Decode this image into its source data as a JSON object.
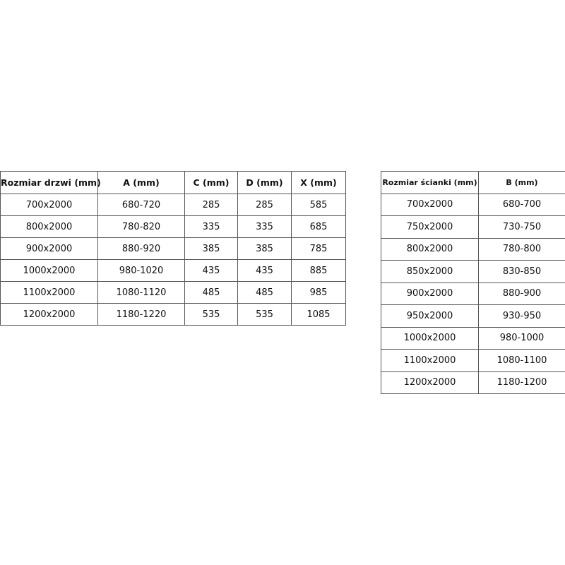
{
  "door_table": {
    "headers": [
      "Rozmiar drzwi (mm)",
      "A (mm)",
      "C (mm)",
      "D (mm)",
      "X (mm)"
    ],
    "rows": [
      [
        "700x2000",
        "680-720",
        "285",
        "285",
        "585"
      ],
      [
        "800x2000",
        "780-820",
        "335",
        "335",
        "685"
      ],
      [
        "900x2000",
        "880-920",
        "385",
        "385",
        "785"
      ],
      [
        "1000x2000",
        "980-1020",
        "435",
        "435",
        "885"
      ],
      [
        "1100x2000",
        "1080-1120",
        "485",
        "485",
        "985"
      ],
      [
        "1200x2000",
        "1180-1220",
        "535",
        "535",
        "1085"
      ]
    ]
  },
  "wall_table": {
    "headers": [
      "Rozmiar ścianki (mm)",
      "B (mm)"
    ],
    "rows": [
      [
        "700x2000",
        "680-700"
      ],
      [
        "750x2000",
        "730-750"
      ],
      [
        "800x2000",
        "780-800"
      ],
      [
        "850x2000",
        "830-850"
      ],
      [
        "900x2000",
        "880-900"
      ],
      [
        "950x2000",
        "930-950"
      ],
      [
        "1000x2000",
        "980-1000"
      ],
      [
        "1100x2000",
        "1080-1100"
      ],
      [
        "1200x2000",
        "1180-1200"
      ]
    ]
  }
}
